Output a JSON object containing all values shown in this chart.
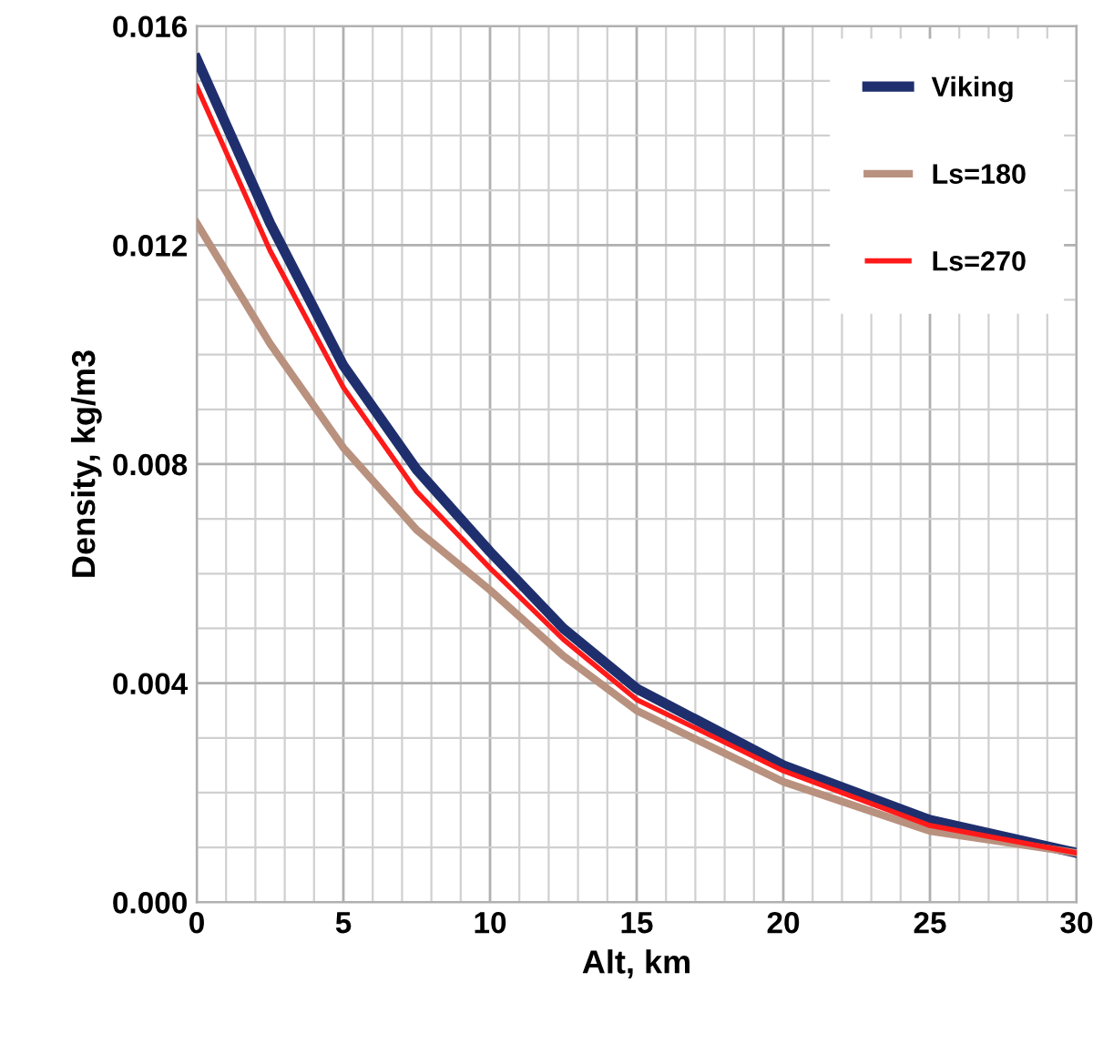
{
  "chart_data": {
    "type": "line",
    "xlabel": "Alt, km",
    "ylabel": "Density, kg/m3",
    "x": [
      0,
      2.5,
      5,
      7.5,
      10,
      12.5,
      15,
      20,
      25,
      30
    ],
    "series": [
      {
        "name": "Viking",
        "color": "#1f2f6e",
        "values": [
          0.0154,
          0.0124,
          0.0098,
          0.0079,
          0.0064,
          0.005,
          0.0039,
          0.0025,
          0.0015,
          0.0009
        ]
      },
      {
        "name": "Ls=180",
        "color": "#b9917f",
        "values": [
          0.0124,
          0.0102,
          0.0083,
          0.0068,
          0.0057,
          0.0045,
          0.0035,
          0.0022,
          0.0013,
          0.0009
        ]
      },
      {
        "name": "Ls=270",
        "color": "#ff1a1a",
        "values": [
          0.0149,
          0.0119,
          0.0094,
          0.0075,
          0.0061,
          0.0048,
          0.0037,
          0.0024,
          0.0014,
          0.0009
        ]
      }
    ],
    "xlim": [
      0,
      30
    ],
    "xticks": [
      0,
      5,
      10,
      15,
      20,
      25,
      30
    ],
    "ylim": [
      0,
      0.016
    ],
    "yticks": [
      {
        "value": 0,
        "label": "0.000"
      },
      {
        "value": 0.004,
        "label": "0.004"
      },
      {
        "value": 0.008,
        "label": "0.008"
      },
      {
        "value": 0.012,
        "label": "0.012"
      },
      {
        "value": 0.016,
        "label": "0.016"
      }
    ],
    "grid": true,
    "legend": "top right",
    "marker": "none",
    "line_style": "solid"
  }
}
